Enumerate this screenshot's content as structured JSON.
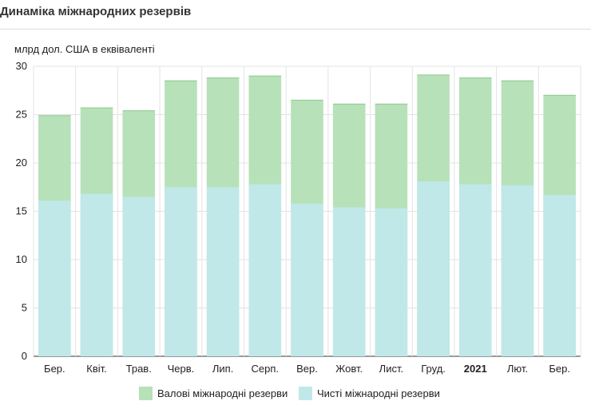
{
  "title": "Динаміка міжнародних резервів",
  "chart_data": {
    "type": "bar",
    "stacked": false,
    "overlapping": true,
    "ylabel": "млрд дол. США в еквіваленті",
    "ylim": [
      0,
      30
    ],
    "yticks": [
      0,
      5,
      10,
      15,
      20,
      25,
      30
    ],
    "grid": true,
    "categories": [
      "Бер.",
      "Квіт.",
      "Трав.",
      "Черв.",
      "Лип.",
      "Серп.",
      "Вер.",
      "Жовт.",
      "Лист.",
      "Груд.",
      "2021",
      "Лют.",
      "Бер."
    ],
    "bold_categories": [
      "2021"
    ],
    "series": [
      {
        "name": "Валові міжнародні резерви",
        "color": "#b7e1b8",
        "values": [
          24.9,
          25.7,
          25.4,
          28.5,
          28.8,
          29.0,
          26.5,
          26.1,
          26.1,
          29.1,
          28.8,
          28.5,
          27.0
        ]
      },
      {
        "name": "Чисті міжнародні резерви",
        "color": "#c0e8e9",
        "values": [
          16.1,
          16.8,
          16.5,
          17.5,
          17.5,
          17.8,
          15.8,
          15.4,
          15.3,
          18.1,
          17.8,
          17.7,
          16.7
        ]
      }
    ],
    "legend_position": "bottom-center"
  }
}
